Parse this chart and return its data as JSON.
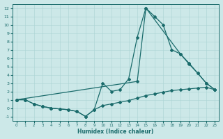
{
  "xlabel": "Humidex (Indice chaleur)",
  "bg_color": "#cce8e8",
  "line_color": "#1a6b6b",
  "grid_color": "#aad4d4",
  "xlim": [
    -0.5,
    23.5
  ],
  "ylim": [
    -1.5,
    12.5
  ],
  "xticks": [
    0,
    1,
    2,
    3,
    4,
    5,
    6,
    7,
    8,
    9,
    10,
    11,
    12,
    13,
    14,
    15,
    16,
    17,
    18,
    19,
    20,
    21,
    22,
    23
  ],
  "yticks": [
    -1,
    0,
    1,
    2,
    3,
    4,
    5,
    6,
    7,
    8,
    9,
    10,
    11,
    12
  ],
  "line1_x": [
    0,
    1,
    2,
    3,
    4,
    5,
    6,
    7,
    8,
    9,
    10,
    11,
    12,
    13,
    14,
    15,
    16,
    17,
    18,
    19,
    20,
    21,
    22,
    23
  ],
  "line1_y": [
    1,
    1,
    0.5,
    0.2,
    0,
    -0.1,
    -0.2,
    -0.4,
    -1.0,
    -0.2,
    3.0,
    2.0,
    2.2,
    3.5,
    8.5,
    12,
    11,
    10,
    7.0,
    6.5,
    5.3,
    4.2,
    3.0,
    2.2
  ],
  "line2_x": [
    0,
    1,
    2,
    3,
    4,
    5,
    6,
    7,
    8,
    9,
    10,
    11,
    12,
    13,
    14,
    15,
    16,
    17,
    18,
    19,
    20,
    21,
    22,
    23
  ],
  "line2_y": [
    1,
    1,
    0.5,
    0.2,
    0,
    -0.1,
    -0.2,
    -0.4,
    -1.0,
    -0.2,
    0.3,
    0.5,
    0.7,
    0.9,
    1.2,
    1.5,
    1.7,
    1.9,
    2.1,
    2.2,
    2.3,
    2.4,
    2.5,
    2.2
  ],
  "line3_x": [
    0,
    14,
    15,
    19,
    20,
    21,
    22,
    23
  ],
  "line3_y": [
    1,
    3.2,
    12,
    6.5,
    5.4,
    4.2,
    3.0,
    2.2
  ]
}
